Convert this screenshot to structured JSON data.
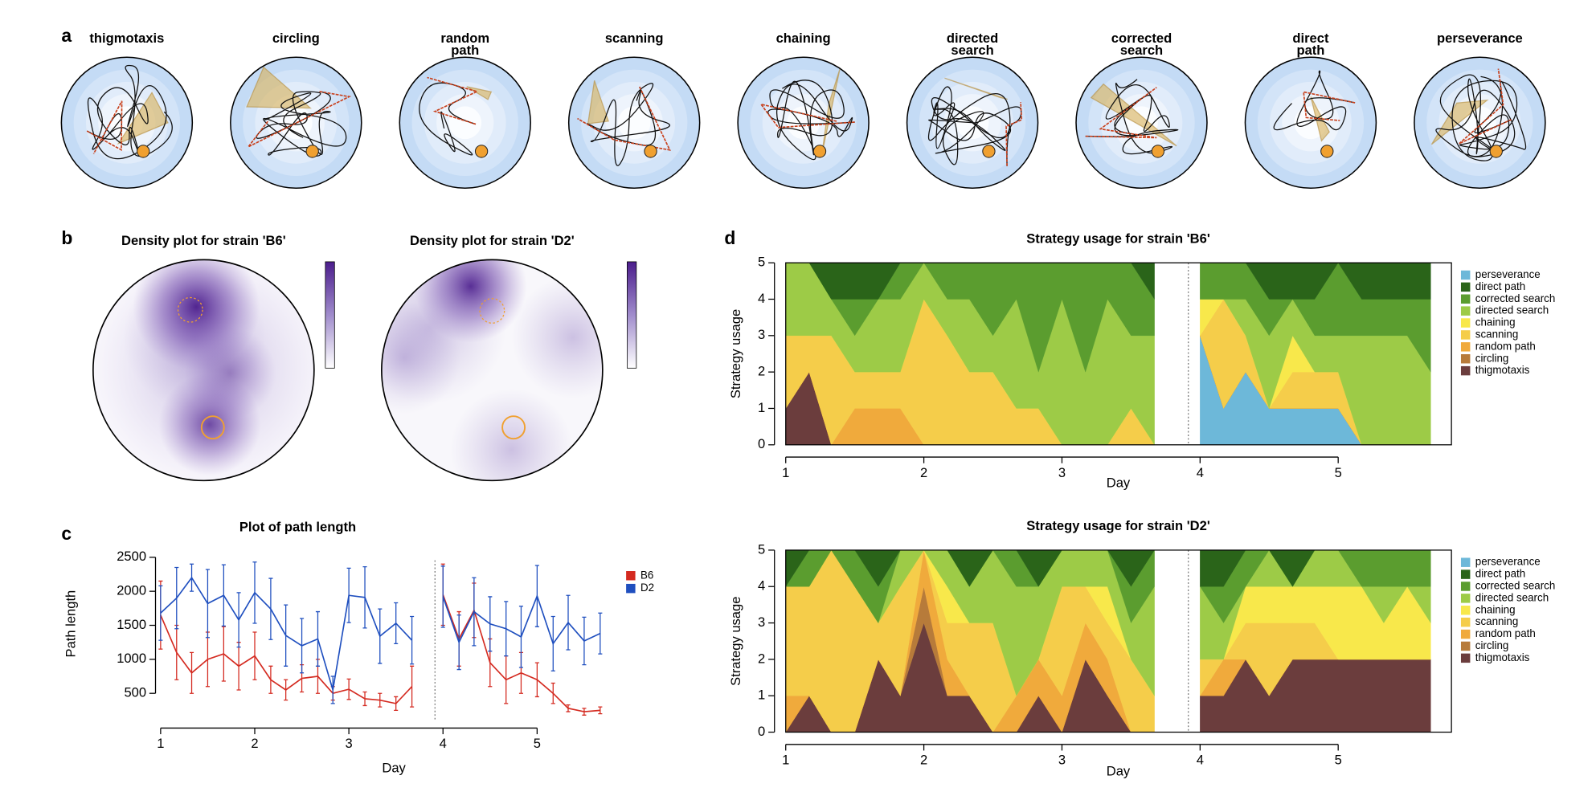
{
  "panel_labels": [
    "a",
    "b",
    "c",
    "d"
  ],
  "examples": {
    "titles": [
      [
        "thigmotaxis"
      ],
      [
        "circling"
      ],
      [
        "random",
        "path"
      ],
      [
        "scanning"
      ],
      [
        "chaining"
      ],
      [
        "directed",
        "search"
      ],
      [
        "corrected",
        "search"
      ],
      [
        "direct",
        "path"
      ],
      [
        "perseverance"
      ]
    ]
  },
  "density": {
    "titles": [
      "Density plot for strain 'B6'",
      "Density plot for strain 'D2'"
    ]
  },
  "chart_data": [
    {
      "type": "line",
      "title": "Plot of path length",
      "xlabel": "Day",
      "ylabel": "Path length",
      "x": [
        1,
        1.17,
        1.33,
        1.5,
        1.67,
        1.83,
        2,
        2.17,
        2.33,
        2.5,
        2.67,
        2.83,
        3,
        3.17,
        3.33,
        3.5,
        3.67,
        3.83,
        4,
        4.17,
        4.33,
        4.5,
        4.67,
        4.83,
        5,
        5.17,
        5.33,
        5.5,
        5.67
      ],
      "series": [
        {
          "name": "B6",
          "color": "#d42a20",
          "values": [
            1650,
            1100,
            800,
            1000,
            1080,
            900,
            1050,
            700,
            550,
            720,
            750,
            500,
            560,
            420,
            400,
            350,
            600,
            null,
            1950,
            1300,
            1720,
            950,
            700,
            800,
            700,
            500,
            280,
            230,
            250
          ],
          "errors": [
            500,
            400,
            300,
            400,
            400,
            350,
            350,
            200,
            150,
            200,
            250,
            100,
            150,
            100,
            100,
            100,
            300,
            null,
            450,
            400,
            400,
            350,
            350,
            300,
            250,
            150,
            50,
            50,
            50
          ]
        },
        {
          "name": "D2",
          "color": "#1f4fbf",
          "values": [
            1680,
            1900,
            2200,
            1820,
            1940,
            1580,
            1980,
            1740,
            1350,
            1200,
            1300,
            550,
            1940,
            1910,
            1340,
            1530,
            1280,
            null,
            1920,
            1250,
            1700,
            1520,
            1450,
            1330,
            1930,
            1230,
            1540,
            1270,
            1380
          ],
          "errors": [
            400,
            450,
            200,
            500,
            450,
            400,
            450,
            450,
            450,
            400,
            400,
            200,
            400,
            450,
            400,
            300,
            350,
            null,
            450,
            400,
            500,
            400,
            400,
            450,
            450,
            400,
            400,
            350,
            300
          ]
        }
      ],
      "xlim": [
        0.8,
        6.1
      ],
      "ylim": [
        200,
        2650
      ],
      "xticks": [
        1,
        2,
        3,
        4,
        5
      ],
      "yticks": [
        500,
        1000,
        1500,
        2000,
        2500
      ],
      "legend": "right"
    },
    {
      "type": "area",
      "title": "Strategy usage for strain 'B6'",
      "xlabel": "Day",
      "ylabel": "Strategy usage",
      "x": [
        1,
        1.17,
        1.33,
        1.5,
        1.67,
        1.83,
        2,
        2.17,
        2.33,
        2.5,
        2.67,
        2.83,
        3,
        3.17,
        3.33,
        3.5,
        3.67,
        3.83,
        4,
        4.17,
        4.33,
        4.5,
        4.67,
        4.83,
        5,
        5.17,
        5.33,
        5.5,
        5.67
      ],
      "series": [
        {
          "name": "perseverance",
          "color": "#6db8d9",
          "values": [
            0,
            0,
            0,
            0,
            0,
            0,
            0,
            0,
            0,
            0,
            0,
            0,
            0,
            0,
            0,
            0,
            0,
            null,
            3,
            1,
            2,
            1,
            1,
            1,
            1,
            0,
            0,
            0,
            0
          ]
        },
        {
          "name": "direct path",
          "color": "#2a6419",
          "values": [
            0,
            0,
            1,
            1,
            1,
            0,
            0,
            0,
            0,
            0,
            0,
            0,
            0,
            0,
            0,
            0,
            1,
            null,
            0,
            0,
            0,
            1,
            1,
            1,
            0,
            1,
            1,
            1,
            1
          ]
        },
        {
          "name": "corrected search",
          "color": "#5b9d2f",
          "values": [
            0,
            0,
            0,
            1,
            0,
            1,
            0,
            1,
            1,
            2,
            1,
            3,
            1,
            3,
            1,
            2,
            1,
            null,
            1,
            1,
            1,
            1,
            0,
            1,
            2,
            1,
            1,
            1,
            2
          ]
        },
        {
          "name": "directed search",
          "color": "#9dcb47",
          "values": [
            2,
            2,
            1,
            1,
            2,
            2,
            1,
            1,
            2,
            1,
            3,
            1,
            4,
            2,
            4,
            2,
            3,
            null,
            0,
            0,
            1,
            2,
            1,
            1,
            1,
            3,
            3,
            3,
            2
          ]
        },
        {
          "name": "chaining",
          "color": "#f8e84b",
          "values": [
            0,
            0,
            0,
            0,
            0,
            0,
            0,
            0,
            0,
            0,
            0,
            0,
            0,
            0,
            0,
            0,
            0,
            null,
            1,
            0,
            0,
            0,
            1,
            0,
            0,
            0,
            0,
            0,
            0
          ]
        },
        {
          "name": "scanning",
          "color": "#f5cd4a",
          "values": [
            2,
            1,
            3,
            1,
            1,
            1,
            4,
            3,
            2,
            2,
            1,
            1,
            0,
            0,
            0,
            1,
            0,
            null,
            0,
            3,
            1,
            0,
            1,
            1,
            1,
            0,
            0,
            0,
            0
          ]
        },
        {
          "name": "random path",
          "color": "#f0aa3c",
          "values": [
            0,
            0,
            0,
            1,
            1,
            1,
            0,
            0,
            0,
            0,
            0,
            0,
            0,
            0,
            0,
            0,
            0,
            null,
            0,
            0,
            0,
            0,
            0,
            0,
            0,
            0,
            0,
            0,
            0
          ]
        },
        {
          "name": "circling",
          "color": "#b77b3a",
          "values": [
            0,
            0,
            0,
            0,
            0,
            0,
            0,
            0,
            0,
            0,
            0,
            0,
            0,
            0,
            0,
            0,
            0,
            null,
            0,
            0,
            0,
            0,
            0,
            0,
            0,
            0,
            0,
            0,
            0
          ]
        },
        {
          "name": "thigmotaxis",
          "color": "#6b3d3d",
          "values": [
            1,
            2,
            0,
            0,
            0,
            0,
            0,
            0,
            0,
            0,
            0,
            0,
            0,
            0,
            0,
            0,
            0,
            null,
            0,
            0,
            0,
            0,
            0,
            0,
            0,
            0,
            0,
            0,
            0
          ]
        }
      ],
      "xlim": [
        1,
        5.82
      ],
      "ylim": [
        0,
        5
      ],
      "xticks": [
        1,
        2,
        3,
        4,
        5
      ],
      "yticks": [
        0,
        1,
        2,
        3,
        4,
        5
      ],
      "legend": "right"
    },
    {
      "type": "area",
      "title": "Strategy usage for strain 'D2'",
      "xlabel": "Day",
      "ylabel": "Strategy usage",
      "x": [
        1,
        1.17,
        1.33,
        1.5,
        1.67,
        1.83,
        2,
        2.17,
        2.33,
        2.5,
        2.67,
        2.83,
        3,
        3.17,
        3.33,
        3.5,
        3.67,
        3.83,
        4,
        4.17,
        4.33,
        4.5,
        4.67,
        4.83,
        5,
        5.17,
        5.33,
        5.5,
        5.67
      ],
      "series": [
        {
          "name": "perseverance",
          "color": "#6db8d9",
          "values": [
            0,
            0,
            0,
            0,
            0,
            0,
            0,
            0,
            0,
            0,
            0,
            0,
            0,
            0,
            0,
            0,
            0,
            null,
            0,
            0,
            0,
            0,
            0,
            0,
            0,
            0,
            0,
            0,
            0
          ]
        },
        {
          "name": "direct path",
          "color": "#2a6419",
          "values": [
            1,
            0,
            0,
            0,
            1,
            0,
            0,
            0,
            1,
            0,
            0,
            1,
            0,
            0,
            0,
            1,
            0,
            null,
            1,
            1,
            0,
            0,
            1,
            0,
            0,
            0,
            0,
            0,
            0
          ]
        },
        {
          "name": "corrected search",
          "color": "#5b9d2f",
          "values": [
            0,
            1,
            0,
            1,
            1,
            0,
            0,
            0,
            0,
            0,
            1,
            0,
            0,
            0,
            0,
            1,
            1,
            null,
            0,
            1,
            1,
            0,
            0,
            0,
            0,
            1,
            1,
            1,
            1
          ]
        },
        {
          "name": "directed search",
          "color": "#9dcb47",
          "values": [
            0,
            0,
            0,
            0,
            0,
            1,
            0,
            1,
            1,
            2,
            3,
            2,
            1,
            1,
            1,
            1,
            3,
            null,
            2,
            1,
            0,
            1,
            0,
            1,
            1,
            0,
            1,
            0,
            1
          ]
        },
        {
          "name": "chaining",
          "color": "#f8e84b",
          "values": [
            0,
            0,
            0,
            0,
            0,
            0,
            0,
            1,
            0,
            0,
            0,
            0,
            0,
            0,
            1,
            0,
            0,
            null,
            0,
            0,
            1,
            1,
            1,
            1,
            2,
            2,
            1,
            2,
            1
          ]
        },
        {
          "name": "scanning",
          "color": "#f5cd4a",
          "values": [
            3,
            3,
            5,
            4,
            1,
            3,
            0,
            1,
            2,
            3,
            0,
            0,
            3,
            1,
            1,
            2,
            1,
            null,
            1,
            0,
            1,
            2,
            1,
            1,
            0,
            0,
            0,
            0,
            0
          ]
        },
        {
          "name": "random path",
          "color": "#f0aa3c",
          "values": [
            1,
            0,
            0,
            0,
            0,
            0,
            1,
            1,
            0,
            0,
            1,
            1,
            1,
            1,
            1,
            0,
            0,
            null,
            0,
            1,
            0,
            0,
            0,
            0,
            0,
            0,
            0,
            0,
            0
          ]
        },
        {
          "name": "circling",
          "color": "#b77b3a",
          "values": [
            0,
            0,
            0,
            0,
            0,
            0,
            1,
            0,
            0,
            0,
            0,
            0,
            0,
            0,
            0,
            0,
            0,
            null,
            0,
            0,
            0,
            0,
            0,
            0,
            0,
            0,
            0,
            0,
            0
          ]
        },
        {
          "name": "thigmotaxis",
          "color": "#6b3d3d",
          "values": [
            0,
            1,
            0,
            0,
            2,
            1,
            3,
            1,
            1,
            0,
            0,
            1,
            0,
            2,
            1,
            0,
            0,
            null,
            1,
            1,
            2,
            1,
            2,
            2,
            2,
            2,
            2,
            2,
            2
          ]
        }
      ],
      "xlim": [
        1,
        5.82
      ],
      "ylim": [
        0,
        5
      ],
      "xticks": [
        1,
        2,
        3,
        4,
        5
      ],
      "yticks": [
        0,
        1,
        2,
        3,
        4,
        5
      ],
      "legend": "right"
    }
  ]
}
